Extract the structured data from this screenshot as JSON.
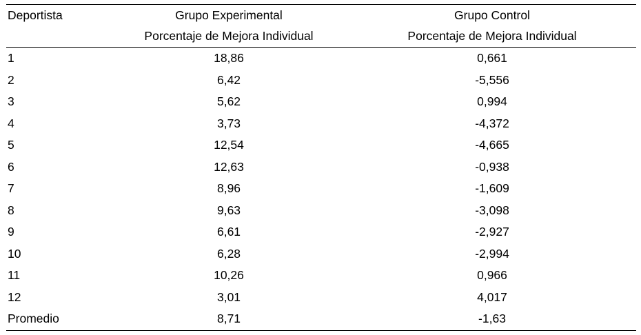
{
  "table": {
    "headers": {
      "col1": "Deportista",
      "col2_line1": "Grupo Experimental",
      "col2_line2": "Porcentaje de Mejora Individual",
      "col3_line1": "Grupo Control",
      "col3_line2": "Porcentaje de Mejora Individual"
    },
    "rows": [
      {
        "id": "1",
        "experimental": "18,86",
        "control": "0,661"
      },
      {
        "id": "2",
        "experimental": "6,42",
        "control": "-5,556"
      },
      {
        "id": "3",
        "experimental": "5,62",
        "control": "0,994"
      },
      {
        "id": "4",
        "experimental": "3,73",
        "control": "-4,372"
      },
      {
        "id": "5",
        "experimental": "12,54",
        "control": "-4,665"
      },
      {
        "id": "6",
        "experimental": "12,63",
        "control": "-0,938"
      },
      {
        "id": "7",
        "experimental": "8,96",
        "control": "-1,609"
      },
      {
        "id": "8",
        "experimental": "9,63",
        "control": "-3,098"
      },
      {
        "id": "9",
        "experimental": "6,61",
        "control": "-2,927"
      },
      {
        "id": "10",
        "experimental": "6,28",
        "control": "-2,994"
      },
      {
        "id": "11",
        "experimental": "10,26",
        "control": "0,966"
      },
      {
        "id": "12",
        "experimental": "3,01",
        "control": "4,017"
      },
      {
        "id": "Promedio",
        "experimental": "8,71",
        "control": "-1,63"
      }
    ]
  }
}
